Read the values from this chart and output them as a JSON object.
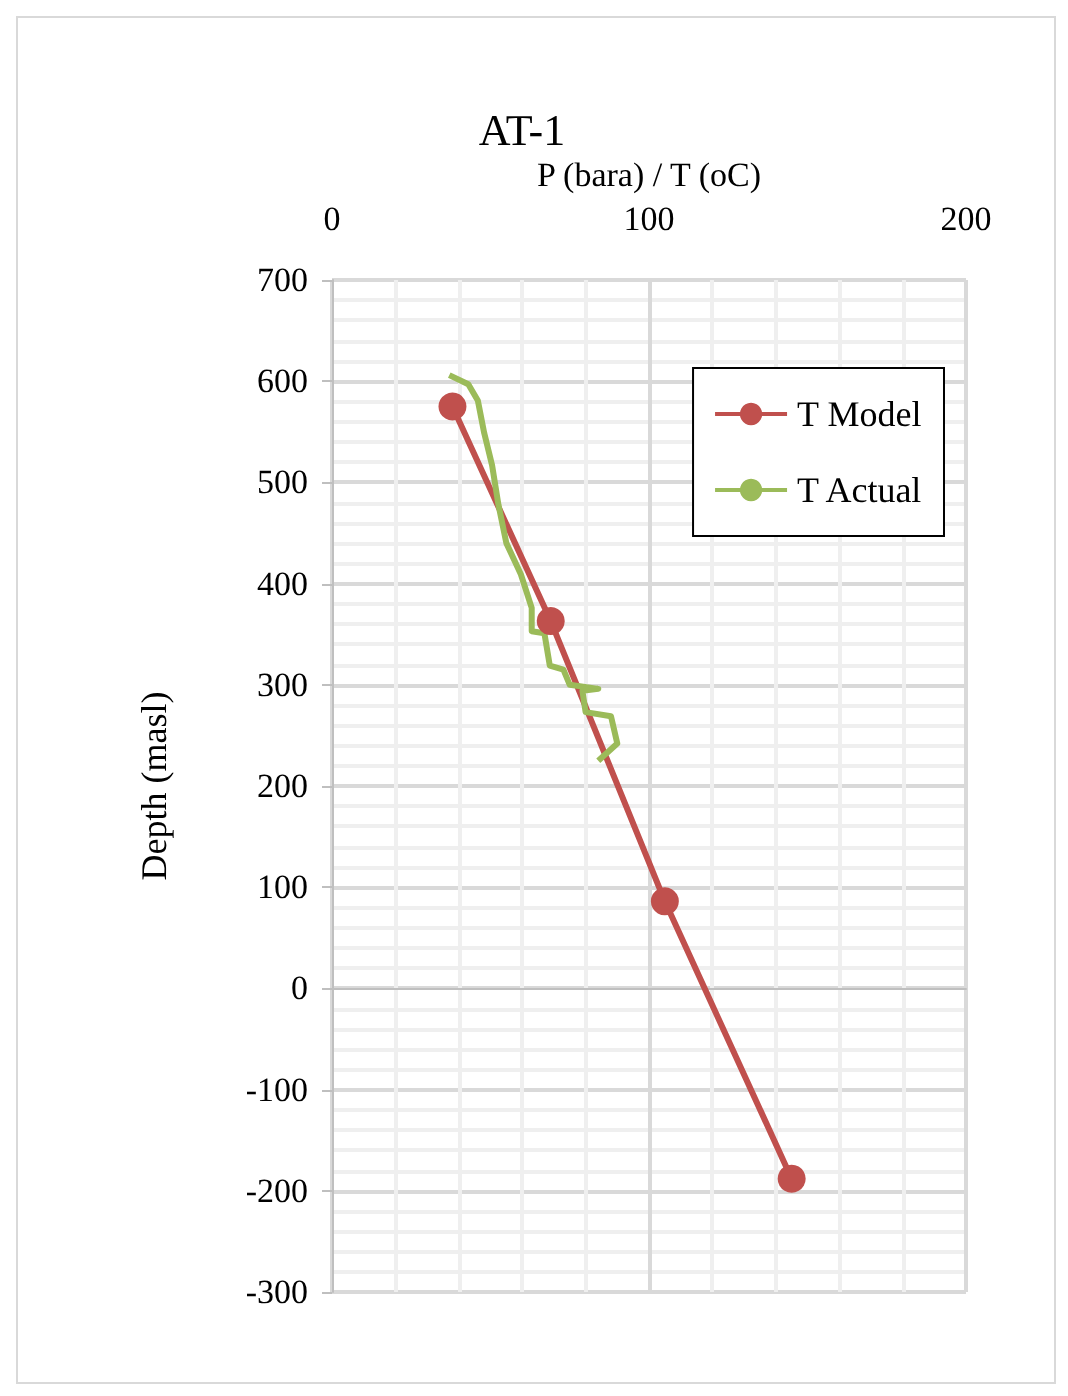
{
  "chart_data": {
    "type": "line",
    "title": "AT-1",
    "xlabel": "P (bara) / T (oC)",
    "ylabel": "Depth (masl)",
    "xlim": [
      0,
      200
    ],
    "xticks": [
      0,
      100,
      200
    ],
    "ylim": [
      -300,
      700
    ],
    "yticks": [
      -300,
      -200,
      -100,
      0,
      100,
      200,
      300,
      400,
      500,
      600,
      700
    ],
    "grid": true,
    "legend": "top right",
    "series": [
      {
        "name": "T Model",
        "color": "#c0504d",
        "marker": "circle",
        "x": [
          38,
          69,
          105,
          145
        ],
        "values": [
          575,
          363,
          86,
          -188
        ]
      },
      {
        "name": "T Actual",
        "color": "#9bbb59",
        "marker": "none",
        "x": [
          37,
          43,
          46,
          48,
          50.5,
          52.5,
          55,
          59.6,
          63,
          63,
          67,
          68.7,
          73,
          75,
          84,
          79,
          80,
          88,
          90,
          84
        ],
        "values": [
          606,
          597,
          581,
          549,
          517,
          478,
          440,
          409,
          376,
          353,
          351,
          319,
          315,
          300,
          296,
          294,
          273,
          269,
          242,
          225
        ]
      }
    ]
  }
}
